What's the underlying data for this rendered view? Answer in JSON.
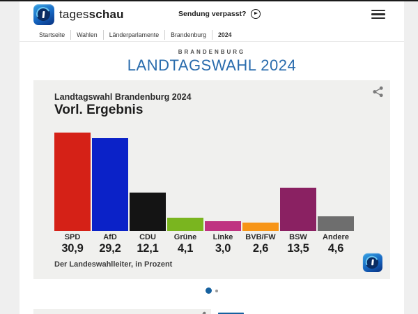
{
  "header": {
    "brand_light": "tages",
    "brand_bold": "schau",
    "sendung_link": "Sendung verpasst?"
  },
  "breadcrumb": [
    "Startseite",
    "Wahlen",
    "Länderparlamente",
    "Brandenburg",
    "2024"
  ],
  "page": {
    "kicker": "BRANDENBURG",
    "title": "LANDTAGSWAHL 2024"
  },
  "chart": {
    "header_small": "Landtagswahl Brandenburg 2024",
    "header_big": "Vorl. Ergebnis",
    "source": "Der Landeswahlleiter, in Prozent",
    "chart_data": {
      "type": "bar",
      "title": "Landtagswahl Brandenburg 2024 – Vorl. Ergebnis",
      "categories": [
        "SPD",
        "AfD",
        "CDU",
        "Grüne",
        "Linke",
        "BVB/FW",
        "BSW",
        "Andere"
      ],
      "values": [
        30.9,
        29.2,
        12.1,
        4.1,
        3.0,
        2.6,
        13.5,
        4.6
      ],
      "value_labels": [
        "30,9",
        "29,2",
        "12,1",
        "4,1",
        "3,0",
        "2,6",
        "13,5",
        "4,6"
      ],
      "colors": [
        "#d52117",
        "#0b22c8",
        "#141414",
        "#7ab51f",
        "#bf3381",
        "#f79518",
        "#8a2162",
        "#6e6e6e"
      ],
      "xlabel": "",
      "ylabel": "Prozent",
      "ylim": [
        0,
        31
      ],
      "grid": false,
      "legend": "none"
    }
  },
  "carousel": {
    "total_dots": 2,
    "active_index": 0
  },
  "colors": {
    "accent_blue": "#16619f",
    "title_blue": "#2a6cad",
    "card_background": "#f0f0ee",
    "top_bar": "#1a1a1a"
  }
}
